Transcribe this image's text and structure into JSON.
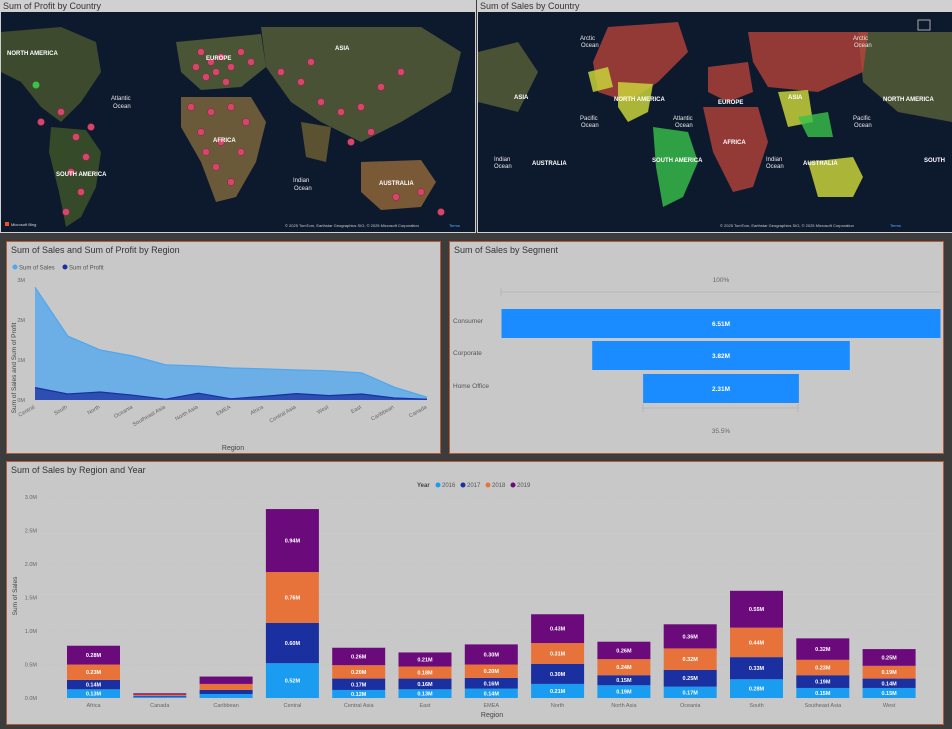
{
  "map_profit": {
    "title": "Sum of Profit by Country",
    "labels": {
      "north_america": "NORTH AMERICA",
      "europe": "EUROPE",
      "asia": "ASIA",
      "africa": "AFRICA",
      "south_america": "SOUTH AMERICA",
      "australia": "AUSTRALIA",
      "atlantic": "Atlantic",
      "atlantic2": "Ocean",
      "indian": "Indian",
      "indian2": "Ocean"
    },
    "attribution": "© 2025 TomTom, Earthstar Geographics SIO, © 2025 Microsoft Corporation",
    "terms": "Terms",
    "ms_logo": "Microsoft Bing",
    "dot_color": "#d6456a"
  },
  "map_sales": {
    "title": "Sum of Sales by Country",
    "labels": {
      "arctic_l1": "Arctic",
      "arctic_l2": "Ocean",
      "arctic_r1": "Arctic",
      "arctic_r2": "Ocean",
      "asia_l": "ASIA",
      "north_america": "NORTH AMERICA",
      "europe": "EUROPE",
      "asia": "ASIA",
      "north_america_r": "NORTH AMERICA",
      "pacific_l1": "Pacific",
      "pacific_l2": "Ocean",
      "atlantic1": "Atlantic",
      "atlantic2": "Ocean",
      "pacific_r1": "Pacific",
      "pacific_r2": "Ocean",
      "africa": "AFRICA",
      "indian_l1": "Indian",
      "indian_l2": "Ocean",
      "australia_l": "AUSTRALIA",
      "south_america": "SOUTH AMERICA",
      "indian_r1": "Indian",
      "indian_r2": "Ocean",
      "australia": "AUSTRALIA",
      "south_r": "SOUTH"
    },
    "attribution": "© 2025 TomTom, Earthstar Geographics SIO, © 2025 Microsoft Corporation",
    "terms": "Terms",
    "colors": {
      "high": "#c0443a",
      "mid": "#c8d23a",
      "low": "#3ac24a"
    }
  },
  "area_chart": {
    "title": "Sum of Sales and Sum of Profit by Region",
    "legend": [
      "Sum of Sales",
      "Sum of Profit"
    ],
    "colors": [
      "#4ea7f0",
      "#1a2fa0"
    ],
    "ylabel": "Sum of Sales and Sum of Profit",
    "xlabel": "Region",
    "yticks": [
      "3M",
      "2M",
      "1M",
      "0M"
    ]
  },
  "funnel": {
    "title": "Sum of Sales by Segment",
    "top_label": "100%",
    "bottom_label": "35.5%",
    "color": "#1a8cff"
  },
  "stacked": {
    "title": "Sum of Sales by Region and Year",
    "legend_title": "Year",
    "years": [
      "2016",
      "2017",
      "2018",
      "2019"
    ],
    "colors": [
      "#1a9cf0",
      "#1a2fa0",
      "#e8733a",
      "#6b0a7a"
    ],
    "ylabel": "Sum of Sales",
    "xlabel": "Region",
    "yticks": [
      "3.0M",
      "2.5M",
      "2.0M",
      "1.5M",
      "1.0M",
      "0.5M",
      "0.0M"
    ]
  },
  "chart_data": [
    {
      "type": "area",
      "title": "Sum of Sales and Sum of Profit by Region",
      "categories": [
        "Central",
        "South",
        "North",
        "Oceania",
        "Southeast Asia",
        "North Asia",
        "EMEA",
        "Africa",
        "Central Asia",
        "West",
        "East",
        "Caribbean",
        "Canada"
      ],
      "series": [
        {
          "name": "Sum of Sales",
          "values": [
            2.82,
            1.6,
            1.25,
            1.1,
            0.88,
            0.85,
            0.8,
            0.78,
            0.75,
            0.73,
            0.68,
            0.32,
            0.07
          ]
        },
        {
          "name": "Sum of Profit",
          "values": [
            0.31,
            0.15,
            0.2,
            0.12,
            0.02,
            0.17,
            0.03,
            0.09,
            0.16,
            0.11,
            0.15,
            0.05,
            0.02
          ]
        }
      ],
      "xlabel": "Region",
      "ylabel": "Sum of Sales and Sum of Profit",
      "ylim": [
        0,
        3
      ],
      "legend": "top-left"
    },
    {
      "type": "bar",
      "title": "Sum of Sales by Segment",
      "categories": [
        "Consumer",
        "Corporate",
        "Home Office"
      ],
      "values": [
        6.51,
        3.82,
        2.31
      ],
      "labels": [
        "6.51M",
        "3.82M",
        "2.31M"
      ]
    },
    {
      "type": "bar",
      "title": "Sum of Sales by Region and Year",
      "categories": [
        "Africa",
        "Canada",
        "Caribbean",
        "Central",
        "Central Asia",
        "East",
        "EMEA",
        "North",
        "North Asia",
        "Oceania",
        "South",
        "Southeast Asia",
        "West"
      ],
      "series": [
        {
          "name": "2016",
          "values": [
            0.13,
            0.02,
            0.06,
            0.52,
            0.12,
            0.13,
            0.14,
            0.21,
            0.19,
            0.17,
            0.28,
            0.15,
            0.15
          ],
          "labels": [
            "0.13M",
            "",
            "",
            "0.52M",
            "0.12M",
            "0.13M",
            "0.14M",
            "0.21M",
            "0.19M",
            "0.17M",
            "0.28M",
            "0.15M",
            "0.15M"
          ]
        },
        {
          "name": "2017",
          "values": [
            0.14,
            0.01,
            0.06,
            0.6,
            0.17,
            0.16,
            0.16,
            0.3,
            0.15,
            0.25,
            0.33,
            0.19,
            0.14
          ],
          "labels": [
            "0.14M",
            "",
            "",
            "0.60M",
            "0.17M",
            "0.16M",
            "0.16M",
            "0.30M",
            "0.15M",
            "0.25M",
            "0.33M",
            "0.19M",
            "0.14M"
          ]
        },
        {
          "name": "2018",
          "values": [
            0.23,
            0.02,
            0.09,
            0.76,
            0.2,
            0.18,
            0.2,
            0.31,
            0.24,
            0.32,
            0.44,
            0.23,
            0.19
          ],
          "labels": [
            "0.23M",
            "",
            "",
            "0.76M",
            "0.20M",
            "0.18M",
            "0.20M",
            "0.31M",
            "0.24M",
            "0.32M",
            "0.44M",
            "0.23M",
            "0.19M"
          ]
        },
        {
          "name": "2019",
          "values": [
            0.28,
            0.02,
            0.11,
            0.94,
            0.26,
            0.21,
            0.3,
            0.43,
            0.26,
            0.36,
            0.55,
            0.32,
            0.25
          ],
          "labels": [
            "0.28M",
            "",
            "",
            "0.94M",
            "0.26M",
            "0.21M",
            "0.30M",
            "0.43M",
            "0.26M",
            "0.36M",
            "0.55M",
            "0.32M",
            "0.25M"
          ]
        }
      ],
      "xlabel": "Region",
      "ylabel": "Sum of Sales",
      "ylim": [
        0,
        3.0
      ],
      "legend": "top-center"
    }
  ]
}
